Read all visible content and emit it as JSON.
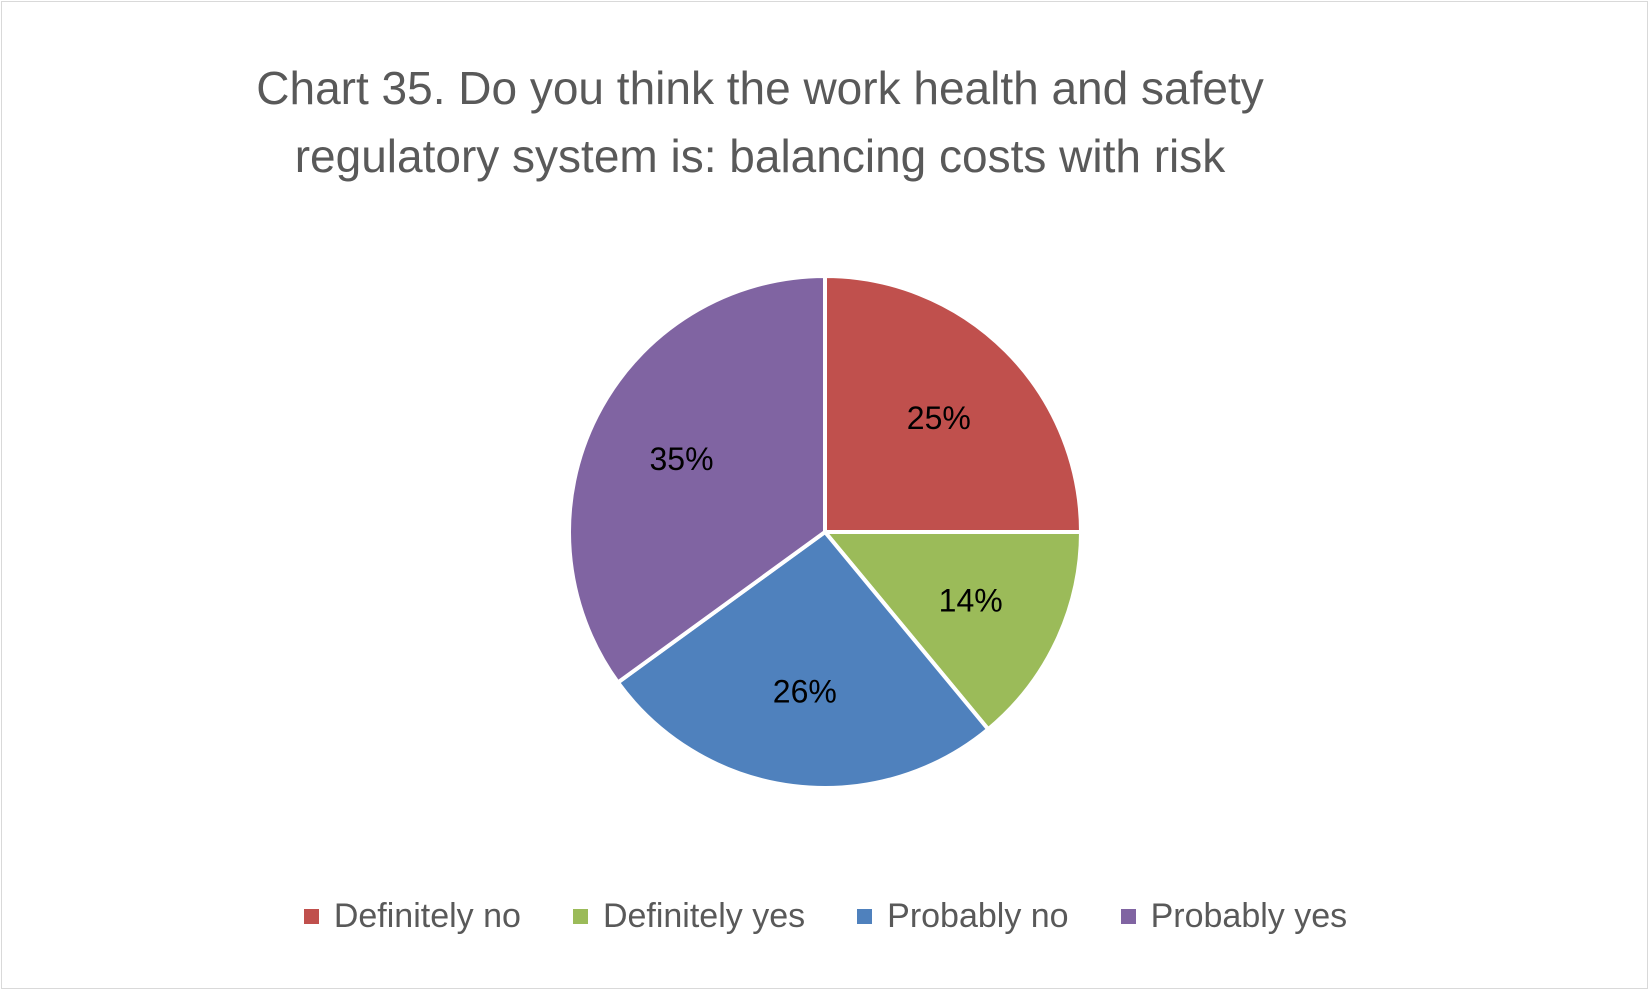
{
  "chart_data": {
    "type": "pie",
    "title_lines": [
      "Chart 35. Do you think the work health and safety",
      "regulatory system is: balancing costs with risk"
    ],
    "categories": [
      "Definitely no",
      "Definitely yes",
      "Probably no",
      "Probably yes"
    ],
    "values": [
      25,
      14,
      26,
      35
    ],
    "labels": [
      "25%",
      "14%",
      "26%",
      "35%"
    ],
    "colors": [
      "#c0504d",
      "#9bbb59",
      "#4f81bd",
      "#8064a2"
    ],
    "legend_position": "bottom"
  }
}
